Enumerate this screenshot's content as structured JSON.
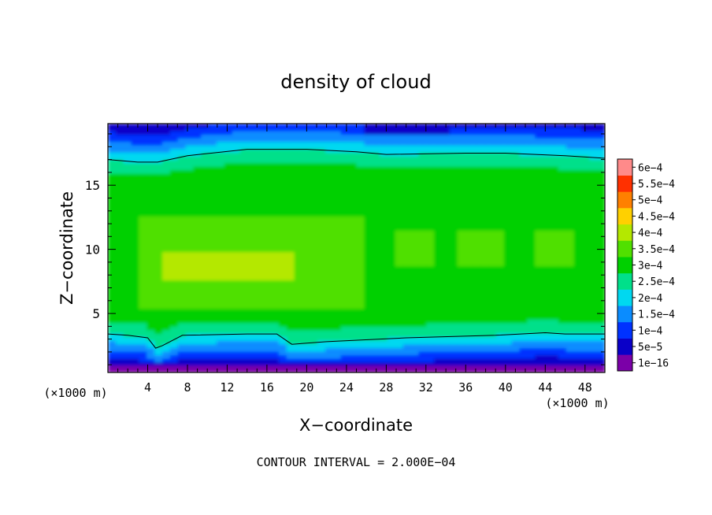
{
  "chart_data": {
    "type": "heatmap",
    "title": "density of cloud",
    "xlabel": "X−coordinate",
    "ylabel": "Z−coordinate",
    "x_unit": "(×1000 m)",
    "y_unit": "(×1000 m)",
    "xlim": [
      0,
      50
    ],
    "ylim": [
      0.4,
      19.8
    ],
    "x_ticks": [
      "4",
      "8",
      "12",
      "16",
      "20",
      "24",
      "28",
      "32",
      "36",
      "40",
      "44",
      "48"
    ],
    "y_ticks": [
      "5",
      "10",
      "15"
    ],
    "x_tick_values": [
      4,
      8,
      12,
      16,
      20,
      24,
      28,
      32,
      36,
      40,
      44,
      48
    ],
    "y_tick_values": [
      5,
      10,
      15
    ],
    "colorbar": {
      "labels": [
        "1e−16",
        "5e−5",
        "1e−4",
        "1.5e−4",
        "2e−4",
        "2.5e−4",
        "3e−4",
        "3.5e−4",
        "4e−4",
        "4.5e−4",
        "5e−4",
        "5.5e−4",
        "6e−4"
      ],
      "values": [
        1e-16,
        5e-05,
        0.0001,
        0.00015,
        0.0002,
        0.00025,
        0.0003,
        0.00035,
        0.0004,
        0.00045,
        0.0005,
        0.00055,
        0.0006
      ],
      "colors": [
        "#7b00a8",
        "#0a00c8",
        "#0032ff",
        "#0a8cff",
        "#00d8f0",
        "#00e08a",
        "#00d000",
        "#50e000",
        "#b4e800",
        "#ffd000",
        "#ff8000",
        "#ff3000",
        "#ff8a8a"
      ]
    },
    "contour_lines": [
      {
        "level": "upper",
        "z_profile": [
          [
            0,
            17.0
          ],
          [
            3,
            16.8
          ],
          [
            5,
            16.8
          ],
          [
            8,
            17.3
          ],
          [
            14,
            17.8
          ],
          [
            20,
            17.8
          ],
          [
            25,
            17.6
          ],
          [
            28,
            17.4
          ],
          [
            36,
            17.5
          ],
          [
            40,
            17.5
          ],
          [
            46,
            17.3
          ],
          [
            50,
            17.1
          ]
        ]
      },
      {
        "level": "lower",
        "z_profile": [
          [
            0,
            3.4
          ],
          [
            2,
            3.3
          ],
          [
            4,
            3.1
          ],
          [
            4.8,
            2.3
          ],
          [
            5.5,
            2.5
          ],
          [
            7.5,
            3.3
          ],
          [
            14,
            3.4
          ],
          [
            17,
            3.4
          ],
          [
            18.5,
            2.6
          ],
          [
            22,
            2.8
          ],
          [
            30,
            3.1
          ],
          [
            39,
            3.3
          ],
          [
            44,
            3.5
          ],
          [
            46,
            3.4
          ],
          [
            50,
            3.4
          ]
        ]
      }
    ]
  },
  "footer": {
    "contour_interval": "CONTOUR INTERVAL = 2.000E−04"
  }
}
